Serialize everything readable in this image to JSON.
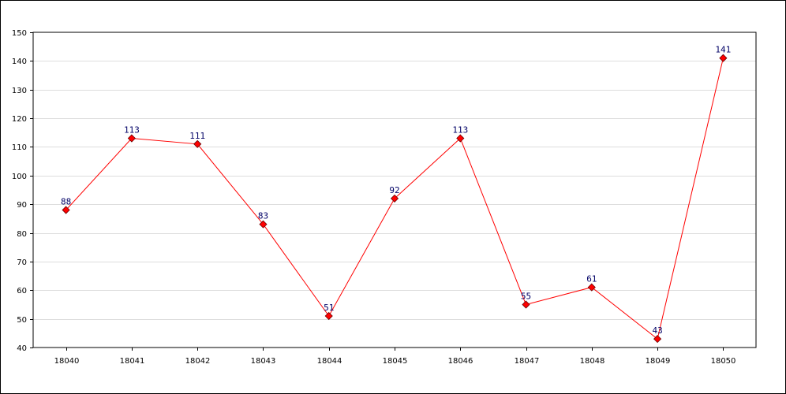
{
  "chart_data": {
    "type": "line",
    "title": "",
    "xlabel": "",
    "ylabel": "",
    "categories": [
      "18040",
      "18041",
      "18042",
      "18043",
      "18044",
      "18045",
      "18046",
      "18047",
      "18048",
      "18049",
      "18050"
    ],
    "series": [
      {
        "values": [
          88,
          113,
          111,
          83,
          51,
          92,
          113,
          55,
          61,
          43,
          141
        ],
        "color": "#ff0000",
        "marker": "diamond",
        "marker_color": "#ff0000",
        "data_labels": true
      }
    ],
    "ylim": [
      40,
      150
    ],
    "yticks": [
      40,
      50,
      60,
      70,
      80,
      90,
      100,
      110,
      120,
      130,
      140,
      150
    ],
    "grid": "horizontal",
    "legend": "none",
    "label_color": "#000066",
    "grid_color": "#dddddd"
  }
}
